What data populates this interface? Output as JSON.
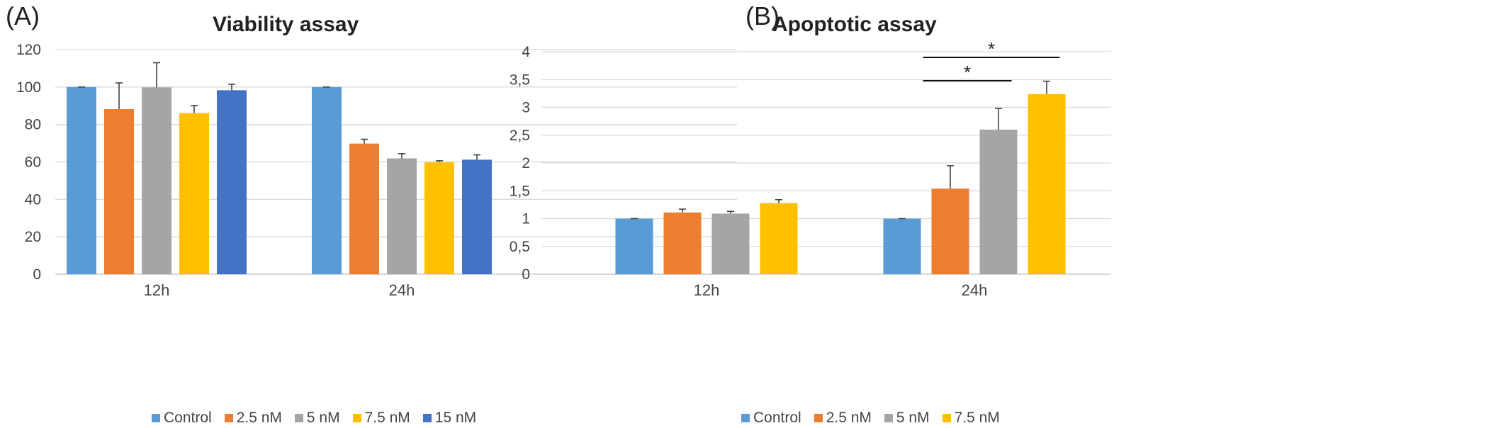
{
  "chart_data": [
    {
      "type": "bar",
      "panel_label": "(A)",
      "title": "Viability assay",
      "categories": [
        "12h",
        "24h"
      ],
      "ylim": [
        0,
        120
      ],
      "yticks": [
        0,
        20,
        40,
        60,
        80,
        100,
        120
      ],
      "ytick_labels": [
        "0",
        "20",
        "40",
        "60",
        "80",
        "100",
        "120"
      ],
      "grid": true,
      "legend_position": "bottom",
      "series": [
        {
          "name": "Control",
          "color": "#5B9BD5",
          "values": [
            100,
            100
          ],
          "errors": [
            0,
            0
          ]
        },
        {
          "name": "2.5 nM",
          "color": "#ED7D31",
          "values": [
            88.2,
            69.8
          ],
          "errors": [
            14,
            2.3
          ]
        },
        {
          "name": "5 nM",
          "color": "#A5A5A5",
          "values": [
            99.8,
            61.9
          ],
          "errors": [
            13.2,
            2.5
          ]
        },
        {
          "name": "7.5 nM",
          "color": "#FFC000",
          "values": [
            86.1,
            59.8
          ],
          "errors": [
            4,
            0.8
          ]
        },
        {
          "name": "15 nM",
          "color": "#4472C4",
          "values": [
            98.3,
            61.2
          ],
          "errors": [
            3.2,
            2.6
          ]
        }
      ]
    },
    {
      "type": "bar",
      "panel_label": "(B)",
      "title": "Apoptotic assay",
      "categories": [
        "12h",
        "24h"
      ],
      "ylim": [
        0,
        4
      ],
      "yticks": [
        0,
        0.5,
        1,
        1.5,
        2,
        2.5,
        3,
        3.5,
        4
      ],
      "ytick_labels": [
        "0",
        "0,5",
        "1",
        "1,5",
        "2",
        "2,5",
        "3",
        "3,5",
        "4"
      ],
      "grid": true,
      "legend_position": "bottom",
      "series": [
        {
          "name": "Control",
          "color": "#5B9BD5",
          "values": [
            1.0,
            1.0
          ],
          "errors": [
            0,
            0
          ]
        },
        {
          "name": "2.5 nM",
          "color": "#ED7D31",
          "values": [
            1.11,
            1.54
          ],
          "errors": [
            0.06,
            0.41
          ]
        },
        {
          "name": "5 nM",
          "color": "#A5A5A5",
          "values": [
            1.09,
            2.6
          ],
          "errors": [
            0.04,
            0.38
          ]
        },
        {
          "name": "7.5 nM",
          "color": "#FFC000",
          "values": [
            1.28,
            3.24
          ],
          "errors": [
            0.06,
            0.23
          ]
        }
      ],
      "significance": [
        {
          "category": "24h",
          "from_series": "2.5 nM",
          "to_series": "7.5 nM",
          "label": "*"
        },
        {
          "category": "24h",
          "from_series": "2.5 nM",
          "to_series": "5 nM",
          "label": "*"
        }
      ]
    }
  ]
}
